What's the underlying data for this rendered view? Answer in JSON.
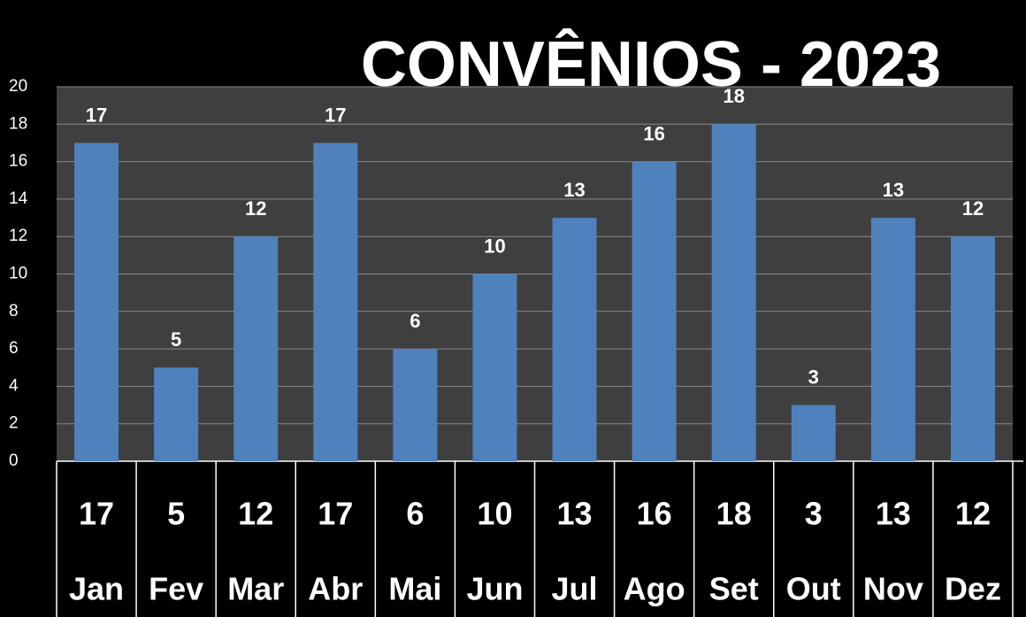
{
  "chart_data": {
    "type": "bar",
    "title": "CONVÊNIOS - 2023",
    "categories": [
      "Jan",
      "Fev",
      "Mar",
      "Abr",
      "Mai",
      "Jun",
      "Jul",
      "Ago",
      "Set",
      "Out",
      "Nov",
      "Dez"
    ],
    "values": [
      17,
      5,
      12,
      17,
      6,
      10,
      13,
      16,
      18,
      3,
      13,
      12
    ],
    "color": "#4f81bd",
    "ylim": [
      0,
      20
    ],
    "yticks": [
      0,
      2,
      4,
      6,
      8,
      10,
      12,
      14,
      16,
      18,
      20
    ],
    "grid": true
  }
}
